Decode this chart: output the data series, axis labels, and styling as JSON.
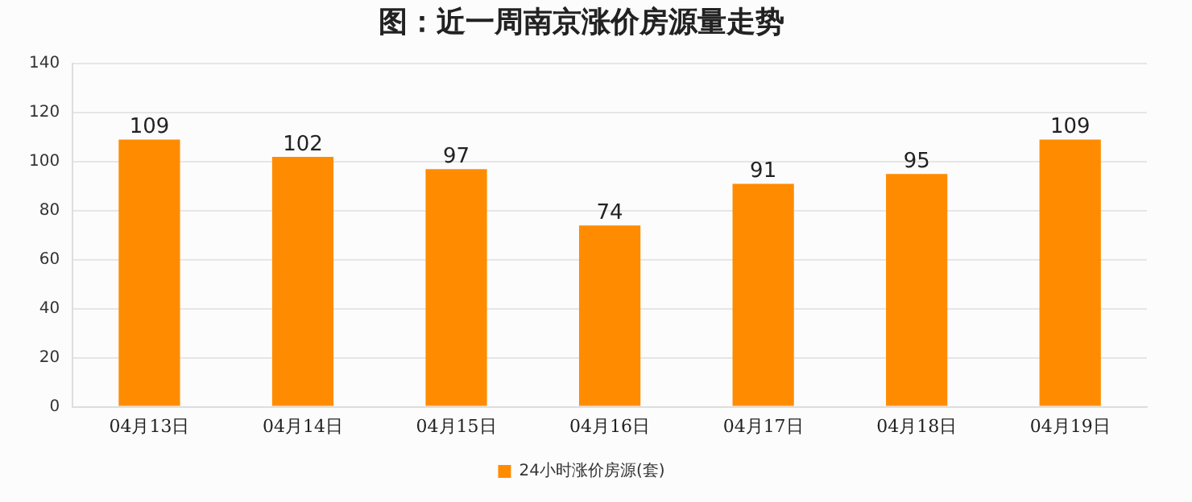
{
  "chart_data": {
    "type": "bar",
    "title": "图：近一周南京涨价房源量走势",
    "categories": [
      "04月13日",
      "04月14日",
      "04月15日",
      "04月16日",
      "04月17日",
      "04月18日",
      "04月19日"
    ],
    "series": [
      {
        "name": "24小时涨价房源(套)",
        "color": "#ff8c00",
        "values": [
          109,
          102,
          97,
          74,
          91,
          95,
          109
        ]
      }
    ],
    "ylim": [
      0,
      140
    ],
    "yticks": [
      0,
      20,
      40,
      60,
      80,
      100,
      120,
      140
    ],
    "grid": "y",
    "legend": "bottom",
    "data_labels": true
  }
}
